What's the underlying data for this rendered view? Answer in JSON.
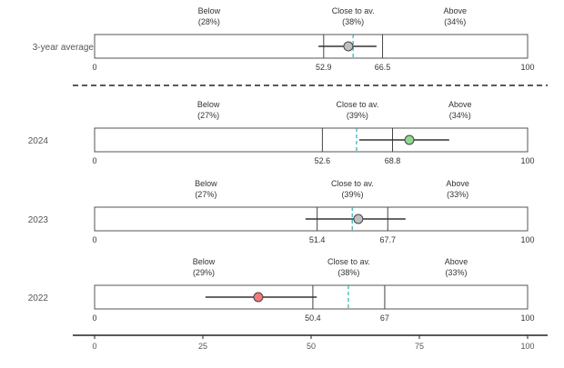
{
  "chart_data": {
    "type": "interval",
    "xlim": [
      0,
      100
    ],
    "x_ticks": [
      0,
      25,
      50,
      75,
      100
    ],
    "band_labels": [
      "Below",
      "Close to av.",
      "Above"
    ],
    "colors": {
      "point_grey": "#c0c0c0",
      "point_green": "#8fd88f",
      "point_red": "#f47a7a",
      "reference_line": "#2ab0b0",
      "text": "#333333"
    },
    "panels": [
      {
        "label": "3-year average",
        "lower": 52.9,
        "upper": 66.5,
        "lower_label": "52.9",
        "upper_label": "66.5",
        "pct": [
          "(28%)",
          "(38%)",
          "(34%)"
        ],
        "point": 58.6,
        "ci": [
          51.7,
          65.1
        ],
        "reference": 59.7,
        "color": "#c0c0c0"
      },
      {
        "label": "2024",
        "lower": 52.6,
        "upper": 68.8,
        "lower_label": "52.6",
        "upper_label": "68.8",
        "pct": [
          "(27%)",
          "(39%)",
          "(34%)"
        ],
        "point": 72.7,
        "ci": [
          61.1,
          81.9
        ],
        "reference": 60.5,
        "color": "#8fd88f"
      },
      {
        "label": "2023",
        "lower": 51.4,
        "upper": 67.7,
        "lower_label": "51.4",
        "upper_label": "67.7",
        "pct": [
          "(27%)",
          "(39%)",
          "(33%)"
        ],
        "point": 60.9,
        "ci": [
          48.7,
          71.8
        ],
        "reference": 59.5,
        "color": "#c0c0c0"
      },
      {
        "label": "2022",
        "lower": 50.4,
        "upper": 67,
        "lower_label": "50.4",
        "upper_label": "67",
        "pct": [
          "(29%)",
          "(38%)",
          "(33%)"
        ],
        "point": 37.8,
        "ci": [
          25.6,
          51.3
        ],
        "reference": 58.6,
        "color": "#f47a7a"
      }
    ]
  }
}
